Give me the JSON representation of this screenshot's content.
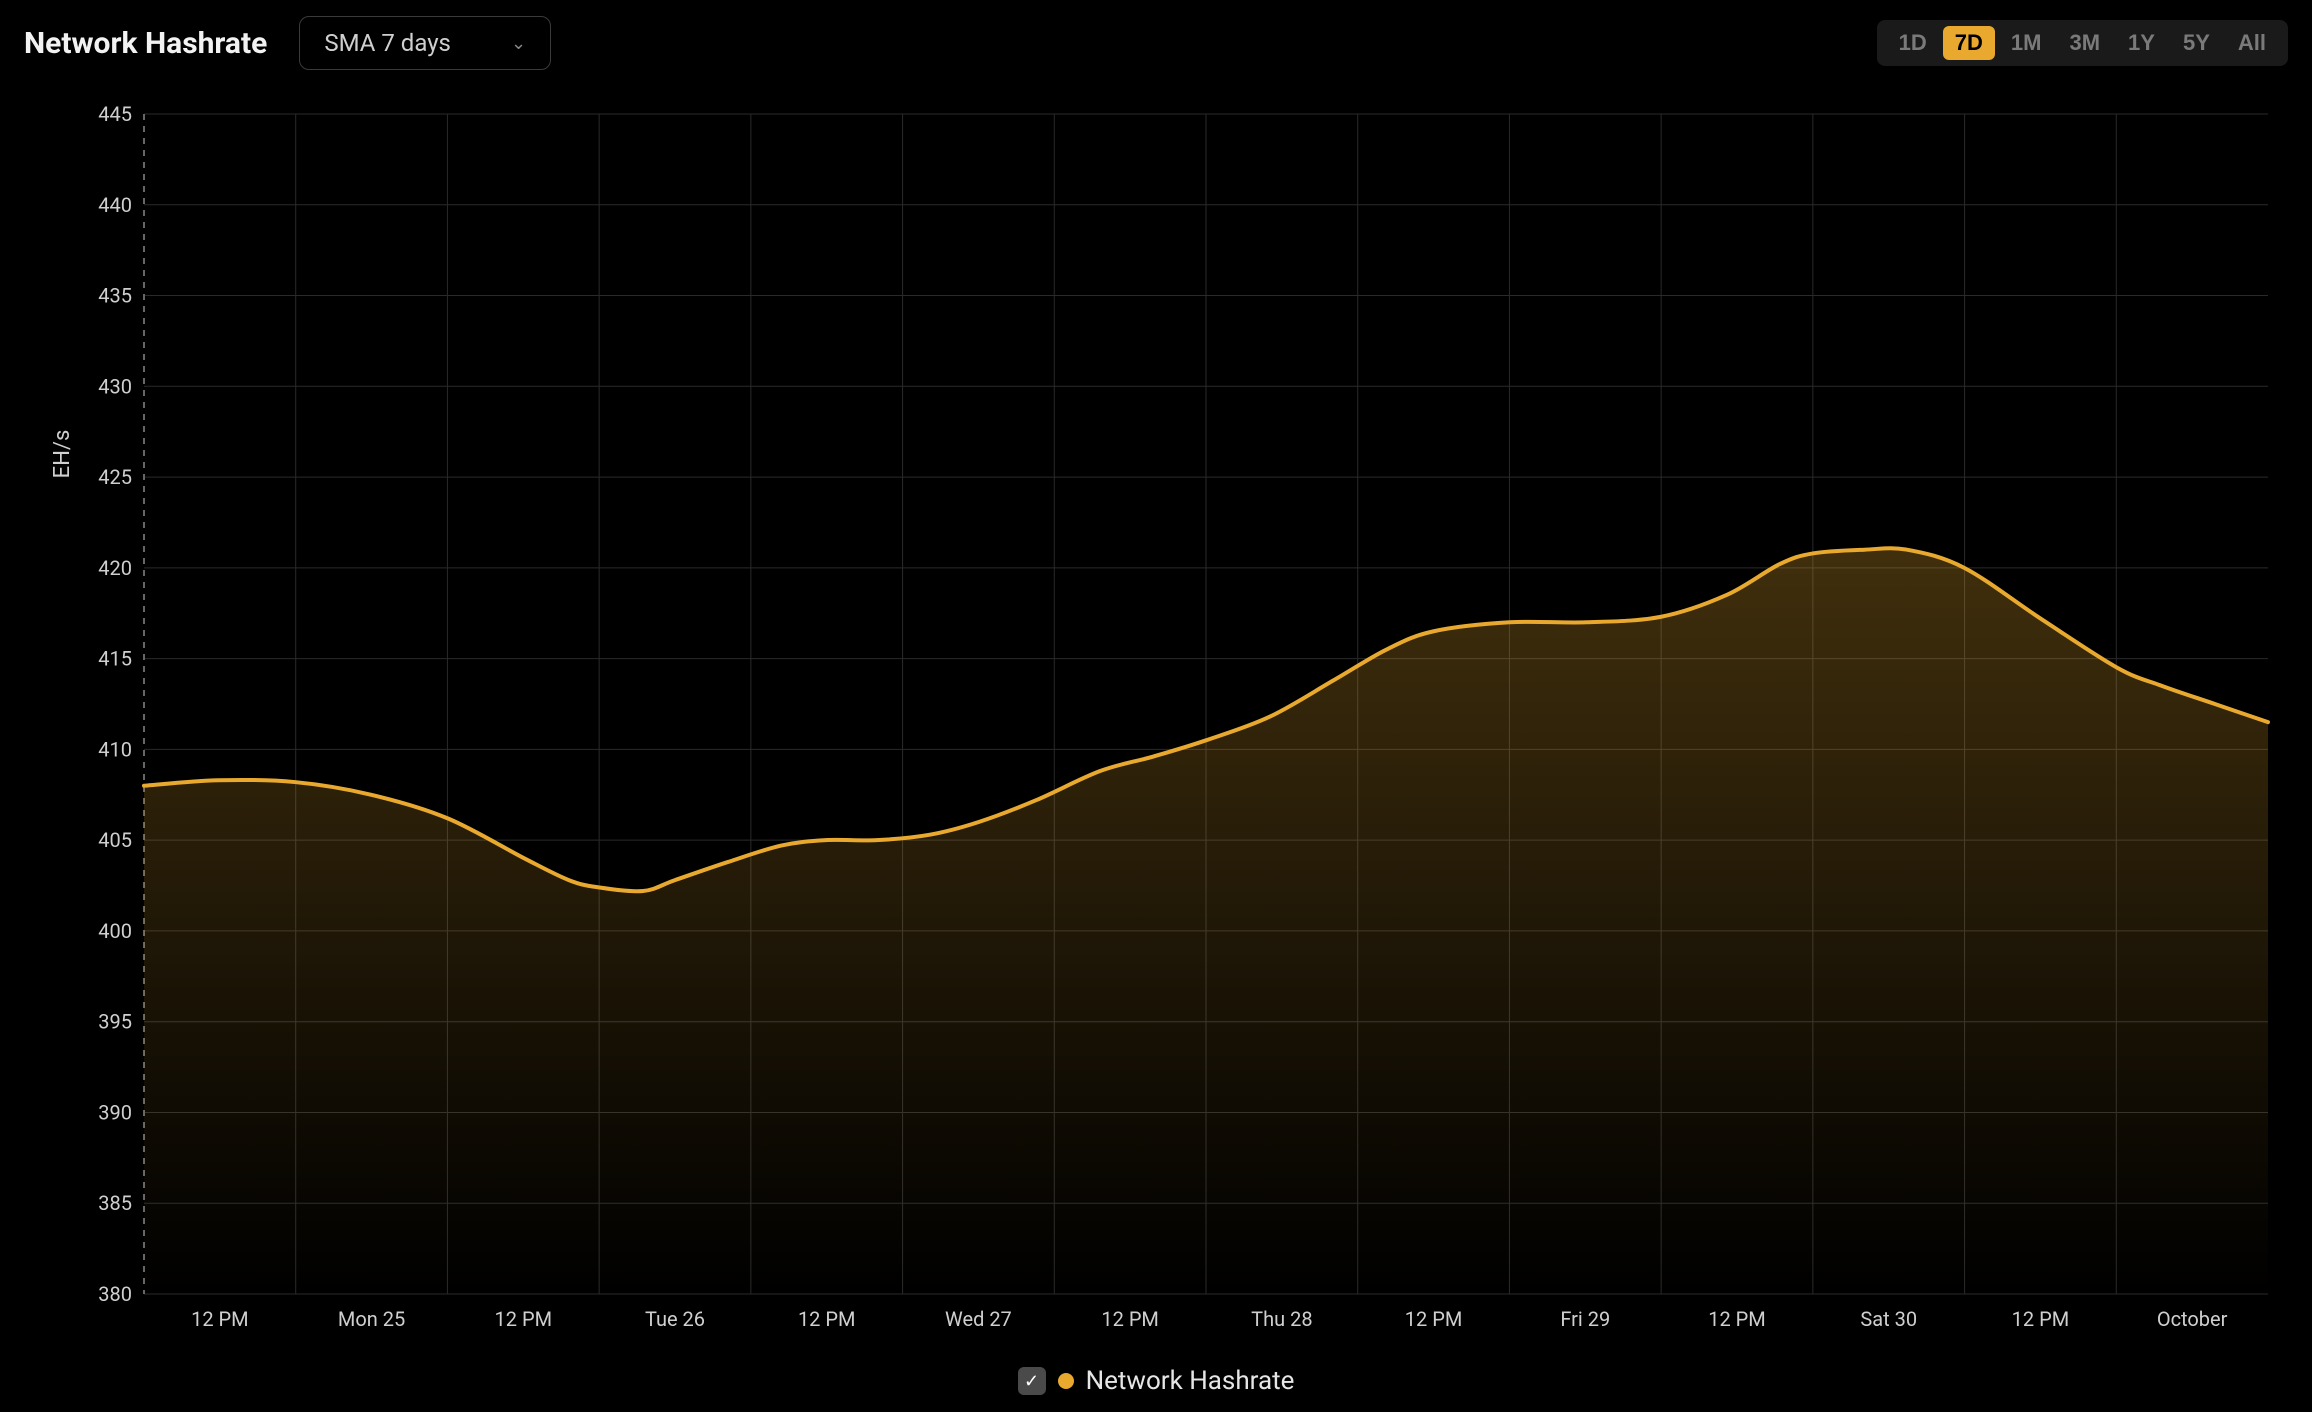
{
  "header": {
    "title": "Network Hashrate",
    "dropdown_label": "SMA 7 days"
  },
  "range_buttons": [
    {
      "label": "1D",
      "active": false
    },
    {
      "label": "7D",
      "active": true
    },
    {
      "label": "1M",
      "active": false
    },
    {
      "label": "3M",
      "active": false
    },
    {
      "label": "1Y",
      "active": false
    },
    {
      "label": "5Y",
      "active": false
    },
    {
      "label": "All",
      "active": false
    }
  ],
  "legend": {
    "checked": true,
    "label": "Network Hashrate",
    "dot_color": "#e8a92e"
  },
  "chart": {
    "type": "area",
    "y_axis_label": "EH/s",
    "y_ticks": [
      380,
      385,
      390,
      395,
      400,
      405,
      410,
      415,
      420,
      425,
      430,
      435,
      440,
      445
    ],
    "ylim": [
      380,
      445
    ],
    "x_ticks": [
      "12 PM",
      "Mon 25",
      "12 PM",
      "Tue 26",
      "12 PM",
      "Wed 27",
      "12 PM",
      "Thu 28",
      "12 PM",
      "Fri 29",
      "12 PM",
      "Sat 30",
      "12 PM",
      "October"
    ],
    "line_color": "#e8a92e",
    "line_width": 4,
    "fill_gradient_top": "rgba(232,169,46,0.28)",
    "fill_gradient_bottom": "rgba(232,169,46,0.0)",
    "grid_color": "#2a2a2a",
    "background_color": "#000000",
    "tick_color": "#cfcfcf",
    "tick_fontsize": 20,
    "axis_label_fontsize": 22,
    "data_points": [
      {
        "x": 0.0,
        "y": 408.0
      },
      {
        "x": 0.035,
        "y": 408.3
      },
      {
        "x": 0.071,
        "y": 408.2
      },
      {
        "x": 0.107,
        "y": 407.5
      },
      {
        "x": 0.143,
        "y": 406.2
      },
      {
        "x": 0.179,
        "y": 404.0
      },
      {
        "x": 0.2,
        "y": 402.8
      },
      {
        "x": 0.214,
        "y": 402.4
      },
      {
        "x": 0.235,
        "y": 402.2
      },
      {
        "x": 0.25,
        "y": 402.8
      },
      {
        "x": 0.275,
        "y": 403.8
      },
      {
        "x": 0.3,
        "y": 404.7
      },
      {
        "x": 0.321,
        "y": 405.0
      },
      {
        "x": 0.345,
        "y": 405.0
      },
      {
        "x": 0.37,
        "y": 405.3
      },
      {
        "x": 0.393,
        "y": 406.0
      },
      {
        "x": 0.42,
        "y": 407.2
      },
      {
        "x": 0.45,
        "y": 408.8
      },
      {
        "x": 0.475,
        "y": 409.6
      },
      {
        "x": 0.5,
        "y": 410.5
      },
      {
        "x": 0.53,
        "y": 411.8
      },
      {
        "x": 0.56,
        "y": 413.8
      },
      {
        "x": 0.585,
        "y": 415.5
      },
      {
        "x": 0.607,
        "y": 416.5
      },
      {
        "x": 0.643,
        "y": 417.0
      },
      {
        "x": 0.679,
        "y": 417.0
      },
      {
        "x": 0.714,
        "y": 417.3
      },
      {
        "x": 0.745,
        "y": 418.5
      },
      {
        "x": 0.77,
        "y": 420.2
      },
      {
        "x": 0.786,
        "y": 420.8
      },
      {
        "x": 0.81,
        "y": 421.0
      },
      {
        "x": 0.83,
        "y": 421.0
      },
      {
        "x": 0.857,
        "y": 420.0
      },
      {
        "x": 0.893,
        "y": 417.2
      },
      {
        "x": 0.929,
        "y": 414.5
      },
      {
        "x": 0.95,
        "y": 413.5
      },
      {
        "x": 0.975,
        "y": 412.5
      },
      {
        "x": 1.0,
        "y": 411.5
      }
    ]
  }
}
